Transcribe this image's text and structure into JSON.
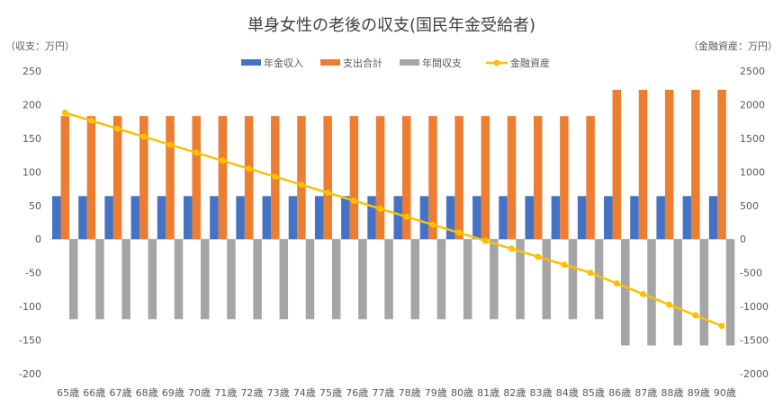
{
  "chart_data": {
    "type": "bar",
    "title": "単身女性の老後の収支(国民年金受給者)",
    "ylabel_left": "（収支：万円）",
    "ylabel_right": "（金融資産：万円）",
    "legend_position": "top",
    "grid": false,
    "ylim_left": [
      -200,
      250
    ],
    "ylim_right": [
      -2000,
      2500
    ],
    "yticks_left": [
      "250",
      "200",
      "150",
      "100",
      "50",
      "0",
      "-50",
      "-100",
      "-150",
      "-200"
    ],
    "yticks_right": [
      "2500",
      "2000",
      "1500",
      "1000",
      "500",
      "0",
      "-500",
      "-1000",
      "-1500",
      "-2000"
    ],
    "categories": [
      "65歳",
      "66歳",
      "67歳",
      "68歳",
      "69歳",
      "70歳",
      "71歳",
      "72歳",
      "73歳",
      "74歳",
      "75歳",
      "76歳",
      "77歳",
      "78歳",
      "79歳",
      "80歳",
      "81歳",
      "82歳",
      "83歳",
      "84歳",
      "85歳",
      "86歳",
      "87歳",
      "88歳",
      "89歳",
      "90歳"
    ],
    "series": [
      {
        "name": "年金収入",
        "type": "bar",
        "axis": "left",
        "color": "#4472C4",
        "values": [
          64,
          64,
          64,
          64,
          64,
          64,
          64,
          64,
          64,
          64,
          64,
          64,
          64,
          64,
          64,
          64,
          64,
          64,
          64,
          64,
          64,
          64,
          64,
          64,
          64,
          64
        ]
      },
      {
        "name": "支出合計",
        "type": "bar",
        "axis": "left",
        "color": "#ED7D31",
        "values": [
          183,
          183,
          183,
          183,
          183,
          183,
          183,
          183,
          183,
          183,
          183,
          183,
          183,
          183,
          183,
          183,
          183,
          183,
          183,
          183,
          183,
          222,
          222,
          222,
          222,
          222
        ]
      },
      {
        "name": "年間収支",
        "type": "bar",
        "axis": "left",
        "color": "#A5A5A5",
        "values": [
          -119,
          -119,
          -119,
          -119,
          -119,
          -119,
          -119,
          -119,
          -119,
          -119,
          -119,
          -119,
          -119,
          -119,
          -119,
          -119,
          -119,
          -119,
          -119,
          -119,
          -119,
          -158,
          -158,
          -158,
          -158,
          -158
        ]
      },
      {
        "name": "金融資産",
        "type": "line",
        "axis": "right",
        "color": "#FFC000",
        "values": [
          1880,
          1761,
          1642,
          1523,
          1404,
          1285,
          1166,
          1047,
          928,
          809,
          690,
          571,
          452,
          333,
          214,
          95,
          -24,
          -143,
          -262,
          -381,
          -500,
          -658,
          -816,
          -974,
          -1132,
          -1290
        ]
      }
    ]
  }
}
